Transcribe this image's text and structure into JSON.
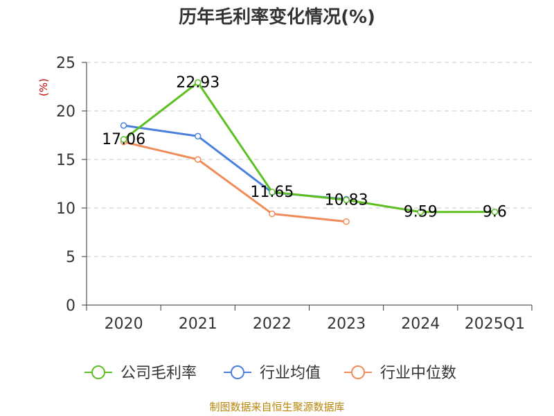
{
  "chart_data": {
    "type": "line",
    "title": "历年毛利率变化情况(%)",
    "y_unit": "(%)",
    "categories": [
      "2020",
      "2021",
      "2022",
      "2023",
      "2024",
      "2025Q1"
    ],
    "ylim": [
      0,
      25
    ],
    "yticks": [
      "0",
      "5",
      "10",
      "15",
      "20",
      "25"
    ],
    "grid": true,
    "legend_position": "bottom",
    "series": [
      {
        "name": "公司毛利率",
        "color": "#5dc020",
        "values": [
          17.06,
          22.93,
          11.65,
          10.83,
          9.59,
          9.6
        ],
        "labels": [
          "17.06",
          "22.93",
          "11.65",
          "10.83",
          "9.59",
          "9.6"
        ]
      },
      {
        "name": "行业均值",
        "color": "#4a80dc",
        "values": [
          18.5,
          17.4,
          11.6,
          10.9,
          null,
          null
        ]
      },
      {
        "name": "行业中位数",
        "color": "#f08c5a",
        "values": [
          16.8,
          15.0,
          9.4,
          8.6,
          null,
          null
        ]
      }
    ],
    "source": "制图数据来自恒生聚源数据库"
  }
}
